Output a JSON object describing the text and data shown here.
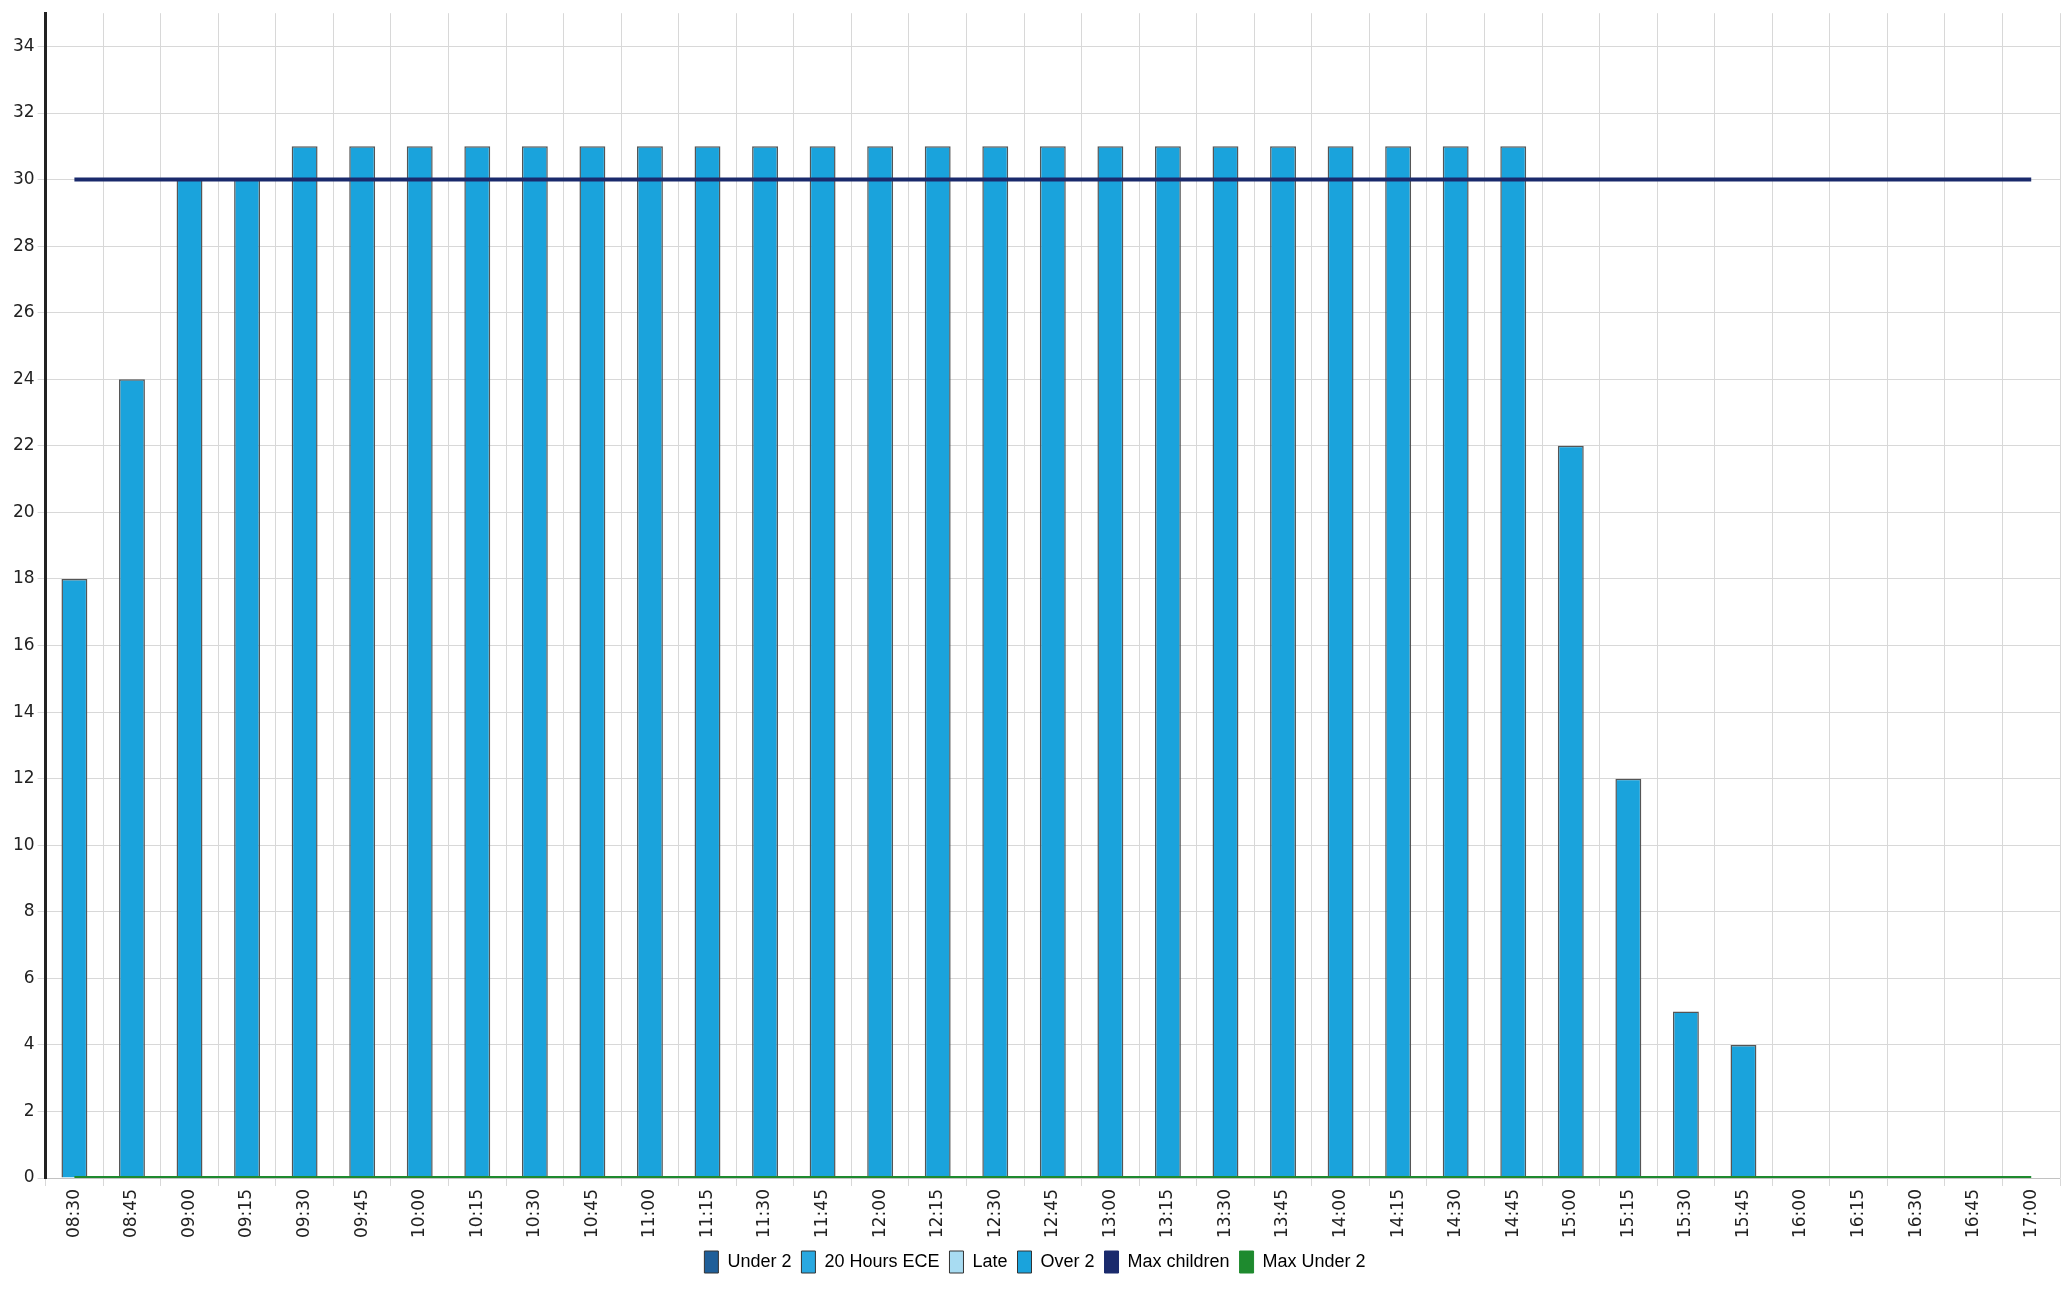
{
  "chart_data": {
    "type": "bar",
    "stacked": true,
    "categories": [
      "08:30",
      "08:45",
      "09:00",
      "09:15",
      "09:30",
      "09:45",
      "10:00",
      "10:15",
      "10:30",
      "10:45",
      "11:00",
      "11:15",
      "11:30",
      "11:45",
      "12:00",
      "12:15",
      "12:30",
      "12:45",
      "13:00",
      "13:15",
      "13:30",
      "13:45",
      "14:00",
      "14:15",
      "14:30",
      "14:45",
      "15:00",
      "15:15",
      "15:30",
      "15:45",
      "16:00",
      "16:15",
      "16:30",
      "16:45",
      "17:00"
    ],
    "series": [
      {
        "name": "Under 2",
        "color": "#1f5f99",
        "values": [
          0,
          0,
          0,
          0,
          0,
          0,
          0,
          0,
          0,
          0,
          0,
          0,
          0,
          0,
          0,
          0,
          0,
          0,
          0,
          0,
          0,
          0,
          0,
          0,
          0,
          0,
          0,
          0,
          0,
          0,
          0,
          0,
          0,
          0,
          0
        ]
      },
      {
        "name": "20 Hours ECE",
        "color": "#29a8e0",
        "values": [
          0,
          0,
          0,
          0,
          0,
          0,
          0,
          0,
          0,
          0,
          0,
          0,
          0,
          0,
          0,
          0,
          0,
          0,
          0,
          0,
          0,
          0,
          0,
          0,
          0,
          0,
          0,
          0,
          0,
          0,
          0,
          0,
          0,
          0,
          0
        ]
      },
      {
        "name": "Late",
        "color": "#a8dcf2",
        "values": [
          0,
          0,
          0,
          0,
          0,
          0,
          0,
          0,
          0,
          0,
          0,
          0,
          0,
          0,
          0,
          0,
          0,
          0,
          0,
          0,
          0,
          0,
          0,
          0,
          0,
          0,
          0,
          0,
          0,
          0,
          0,
          0,
          0,
          0,
          0
        ]
      },
      {
        "name": "Over 2",
        "color": "#1aa3dc",
        "values": [
          18,
          24,
          30,
          30,
          31,
          31,
          31,
          31,
          31,
          31,
          31,
          31,
          31,
          31,
          31,
          31,
          31,
          31,
          31,
          31,
          31,
          31,
          31,
          31,
          31,
          31,
          22,
          12,
          5,
          4,
          0,
          0,
          0,
          0,
          0
        ]
      },
      {
        "name": "Max children",
        "type": "line",
        "color": "#1a2a6c",
        "values": [
          30,
          30,
          30,
          30,
          30,
          30,
          30,
          30,
          30,
          30,
          30,
          30,
          30,
          30,
          30,
          30,
          30,
          30,
          30,
          30,
          30,
          30,
          30,
          30,
          30,
          30,
          30,
          30,
          30,
          30,
          30,
          30,
          30,
          30,
          30
        ]
      },
      {
        "name": "Max Under 2",
        "type": "line",
        "color": "#1e8a2e",
        "values": [
          0,
          0,
          0,
          0,
          0,
          0,
          0,
          0,
          0,
          0,
          0,
          0,
          0,
          0,
          0,
          0,
          0,
          0,
          0,
          0,
          0,
          0,
          0,
          0,
          0,
          0,
          0,
          0,
          0,
          0,
          0,
          0,
          0,
          0,
          0
        ]
      }
    ],
    "ylim": [
      0,
      35
    ],
    "yticks": [
      0,
      2,
      4,
      6,
      8,
      10,
      12,
      14,
      16,
      18,
      20,
      22,
      24,
      26,
      28,
      30,
      32,
      34
    ],
    "grid": true,
    "legend": "bottom",
    "marker": "none"
  }
}
